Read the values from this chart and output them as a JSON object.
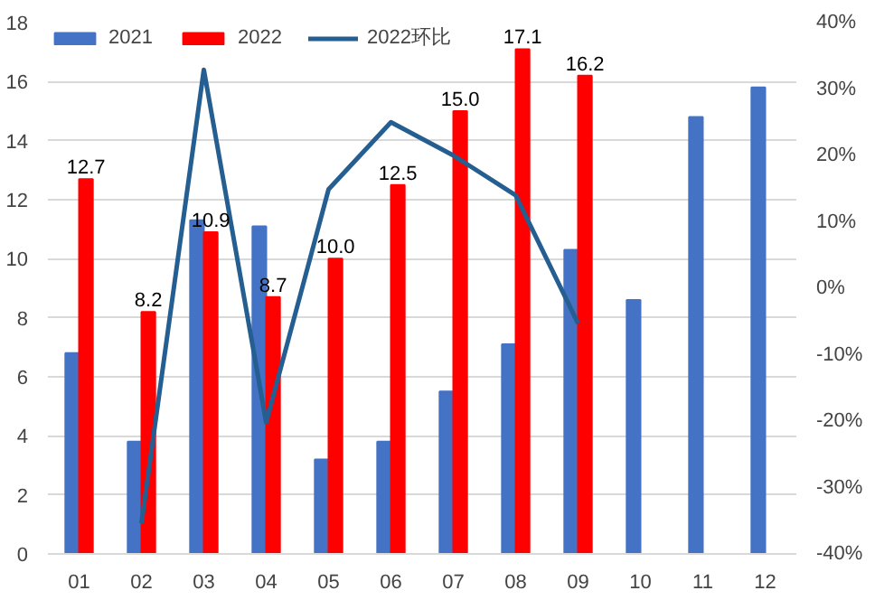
{
  "chart_data": {
    "type": "bar",
    "categories": [
      "01",
      "02",
      "03",
      "04",
      "05",
      "06",
      "07",
      "08",
      "09",
      "10",
      "11",
      "12"
    ],
    "series": [
      {
        "name": "2021",
        "color": "#4472c4",
        "values": [
          6.8,
          3.8,
          11.3,
          11.1,
          3.2,
          3.8,
          5.5,
          7.1,
          10.3,
          8.6,
          14.8,
          15.8
        ]
      },
      {
        "name": "2022",
        "color": "#ff0000",
        "values": [
          12.7,
          8.2,
          10.9,
          8.7,
          10.0,
          12.5,
          15.0,
          17.1,
          16.2,
          null,
          null,
          null
        ],
        "value_labels": [
          "12.7",
          "8.2",
          "10.9",
          "8.7",
          "10.0",
          "12.5",
          "15.0",
          "17.1",
          "16.2",
          null,
          null,
          null
        ]
      },
      {
        "name": "2022环比",
        "type": "line",
        "axis": "y2",
        "color": "#255e91",
        "values": [
          null,
          -35.4,
          32.9,
          -20.2,
          14.9,
          25.0,
          20.0,
          14.0,
          -5.3,
          null,
          null,
          null
        ]
      }
    ],
    "ylim": [
      0,
      18
    ],
    "yticks": [
      0,
      2,
      4,
      6,
      8,
      10,
      12,
      14,
      16,
      18
    ],
    "y2lim": [
      -40,
      40
    ],
    "y2ticks": [
      {
        "value": -40,
        "label": "-40%"
      },
      {
        "value": -30,
        "label": "-30%"
      },
      {
        "value": -20,
        "label": "-20%"
      },
      {
        "value": -10,
        "label": "-10%"
      },
      {
        "value": 0,
        "label": "0%"
      },
      {
        "value": 10,
        "label": "10%"
      },
      {
        "value": 20,
        "label": "20%"
      },
      {
        "value": 30,
        "label": "30%"
      },
      {
        "value": 40,
        "label": "40%"
      }
    ],
    "grid": "y",
    "legend": "top",
    "marker": "none",
    "line_style": "solid"
  }
}
